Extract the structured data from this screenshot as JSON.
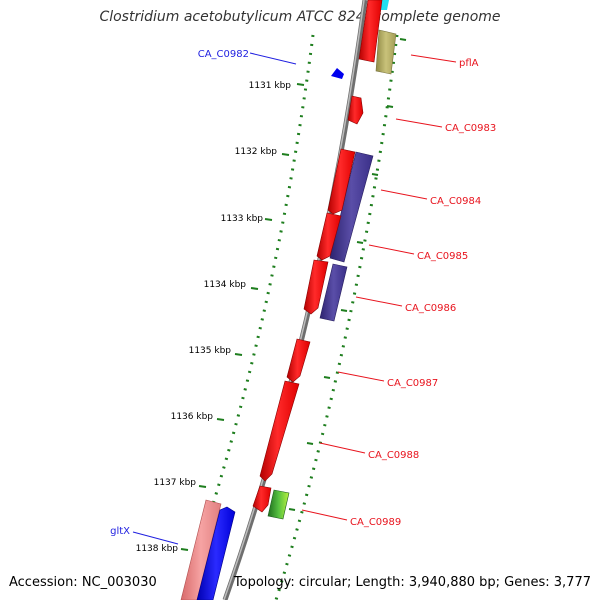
{
  "title": "Clostridium acetobutylicum ATCC 824, complete genome",
  "footer": {
    "accession": "Accession: NC_003030",
    "summary": "Topology: circular; Length: 3,940,880 bp; Genes: 3,777"
  },
  "colors": {
    "backbone": "#8a8a8a",
    "dots": "#1e7e1e",
    "label_red": "#e8141e",
    "label_blue": "#1f1fe0"
  },
  "scale_ticks": [
    "1131 kbp",
    "1132 kbp",
    "1133 kbp",
    "1134 kbp",
    "1135 kbp",
    "1136 kbp",
    "1137 kbp",
    "1138 kbp"
  ],
  "gene_labels": [
    {
      "text": "CA_C0982",
      "color": "blue"
    },
    {
      "text": "pflA",
      "color": "red"
    },
    {
      "text": "CA_C0983",
      "color": "red"
    },
    {
      "text": "CA_C0984",
      "color": "red"
    },
    {
      "text": "CA_C0985",
      "color": "red"
    },
    {
      "text": "CA_C0986",
      "color": "red"
    },
    {
      "text": "CA_C0987",
      "color": "red"
    },
    {
      "text": "CA_C0988",
      "color": "red"
    },
    {
      "text": "CA_C0989",
      "color": "red"
    },
    {
      "text": "gltX",
      "color": "blue"
    }
  ]
}
